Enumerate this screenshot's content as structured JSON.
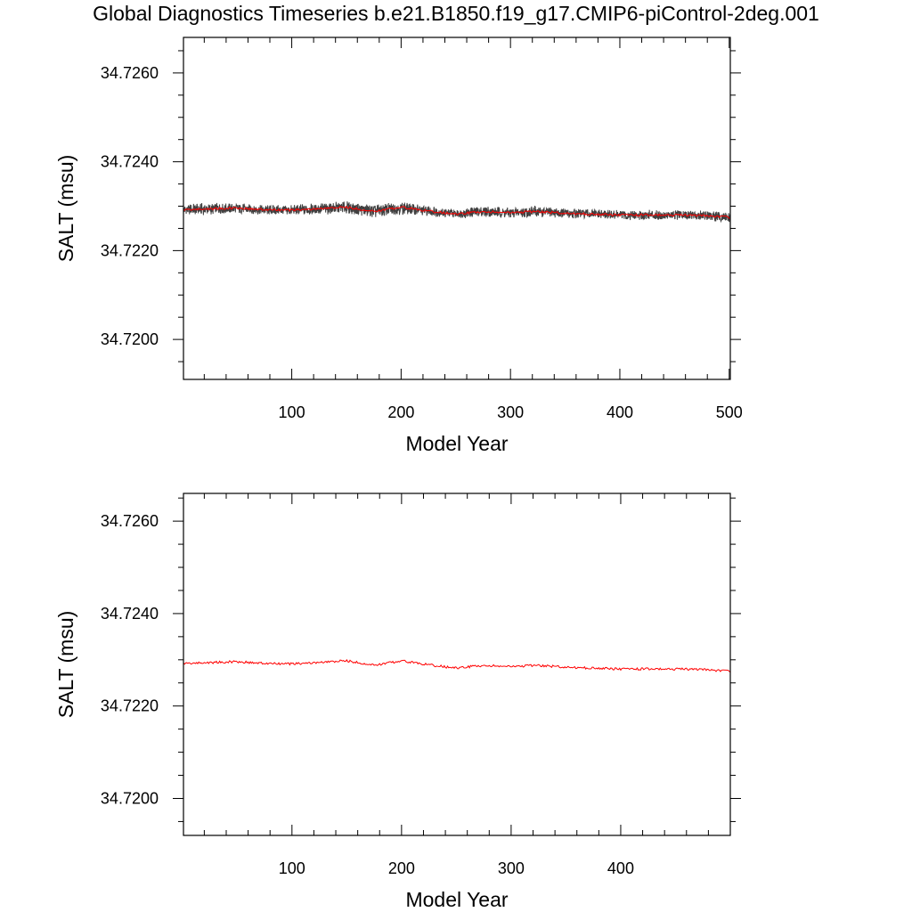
{
  "title": "Global Diagnostics Timeseries b.e21.B1850.f19_g17.CMIP6-piControl-2deg.001",
  "chart_data": [
    {
      "type": "line",
      "name": "top-panel",
      "xlabel": "Model Year",
      "ylabel": "SALT (msu)",
      "xlim": [
        1,
        501
      ],
      "ylim": [
        34.7191,
        34.7268
      ],
      "xticks": [
        100,
        200,
        300,
        400,
        500
      ],
      "xtick_labels": [
        "100",
        "200",
        "300",
        "400",
        "500"
      ],
      "yticks": [
        34.72,
        34.722,
        34.724,
        34.726
      ],
      "ytick_labels": [
        "34.7200",
        "34.7220",
        "34.7240",
        "34.7260"
      ],
      "grid": false,
      "legend": "none",
      "series": [
        {
          "kind": "monthly-band",
          "color": "#000000",
          "x": [
            1,
            25,
            50,
            75,
            100,
            125,
            150,
            175,
            200,
            225,
            250,
            275,
            300,
            325,
            350,
            375,
            400,
            425,
            450,
            475,
            500
          ],
          "lower": [
            34.72278,
            34.7228,
            34.72282,
            34.72279,
            34.72278,
            34.7228,
            34.72282,
            34.72272,
            34.7228,
            34.72276,
            34.72272,
            34.72274,
            34.72272,
            34.72274,
            34.72272,
            34.72271,
            34.72268,
            34.72268,
            34.72268,
            34.72268,
            34.72262
          ],
          "upper": [
            34.72306,
            34.72308,
            34.72308,
            34.72304,
            34.72304,
            34.72308,
            34.72312,
            34.72306,
            34.72312,
            34.72302,
            34.72294,
            34.72302,
            34.72298,
            34.72302,
            34.72296,
            34.72294,
            34.72292,
            34.72292,
            34.72292,
            34.72291,
            34.72288
          ]
        },
        {
          "kind": "annual-mean",
          "color": "#ff0000",
          "x": [
            1,
            25,
            50,
            75,
            100,
            125,
            150,
            175,
            200,
            225,
            250,
            275,
            300,
            325,
            350,
            375,
            400,
            425,
            450,
            475,
            500
          ],
          "values": [
            34.72292,
            34.72294,
            34.72296,
            34.72292,
            34.72291,
            34.72294,
            34.72298,
            34.72288,
            34.72298,
            34.72289,
            34.72282,
            34.72288,
            34.72285,
            34.72288,
            34.72284,
            34.72282,
            34.7228,
            34.7228,
            34.7228,
            34.72279,
            34.72275
          ]
        }
      ]
    },
    {
      "type": "line",
      "name": "bottom-panel",
      "xlabel": "Model Year",
      "ylabel": "SALT (msu)",
      "xlim": [
        1,
        500
      ],
      "ylim": [
        34.7192,
        34.7266
      ],
      "xticks": [
        100,
        200,
        300,
        400
      ],
      "xtick_labels": [
        "100",
        "200",
        "300",
        "400"
      ],
      "yticks": [
        34.72,
        34.722,
        34.724,
        34.726
      ],
      "ytick_labels": [
        "34.7200",
        "34.7220",
        "34.7240",
        "34.7260"
      ],
      "grid": false,
      "legend": "none",
      "series": [
        {
          "kind": "annual-mean",
          "color": "#ff0000",
          "x": [
            1,
            25,
            50,
            75,
            100,
            125,
            150,
            175,
            200,
            225,
            250,
            275,
            300,
            325,
            350,
            375,
            400,
            425,
            450,
            475,
            500
          ],
          "values": [
            34.72292,
            34.72294,
            34.72296,
            34.72292,
            34.72291,
            34.72294,
            34.72298,
            34.72288,
            34.72298,
            34.72289,
            34.72282,
            34.72288,
            34.72285,
            34.72288,
            34.72284,
            34.72282,
            34.7228,
            34.7228,
            34.7228,
            34.72279,
            34.72275
          ]
        }
      ]
    }
  ]
}
